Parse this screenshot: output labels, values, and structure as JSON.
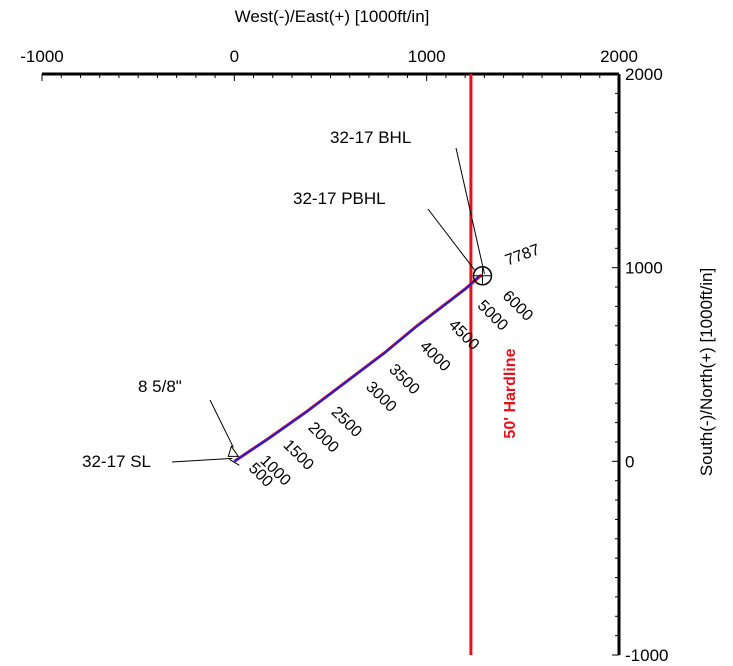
{
  "chart_data": {
    "type": "line",
    "title": "",
    "xlabel": "West(-)/East(+) [1000ft/in]",
    "ylabel": "South(-)/North(+) [1000ft/in]",
    "xlim": [
      -1000,
      2000
    ],
    "ylim": [
      -1000,
      2000
    ],
    "x_ticks": [
      -1000,
      0,
      1000,
      2000
    ],
    "y_ticks": [
      2000,
      1000,
      0,
      -1000
    ],
    "grid": false,
    "colors": {
      "axis": "#000000",
      "hardline": "#e8101a",
      "survey": "#1c1ce0",
      "plan": "#e8101a"
    },
    "series": [
      {
        "x": [
          0,
          180,
          380,
          580,
          780,
          950,
          1200,
          1280,
          1290
        ],
        "y": [
          0,
          120,
          260,
          410,
          560,
          700,
          890,
          958,
          958
        ]
      },
      {
        "x": [
          0,
          180,
          380,
          580,
          780,
          950,
          1200,
          1270
        ],
        "y": [
          0,
          118,
          258,
          408,
          558,
          698,
          888,
          955
        ]
      }
    ],
    "hardline": {
      "label": "50' Hardline",
      "x": 1230
    },
    "depth_labels": [
      {
        "text": "500",
        "x": 70,
        "y": -40
      },
      {
        "text": "1000",
        "x": 130,
        "y": 0
      },
      {
        "text": "1500",
        "x": 250,
        "y": 80
      },
      {
        "text": "2000",
        "x": 380,
        "y": 170
      },
      {
        "text": "2500",
        "x": 500,
        "y": 250
      },
      {
        "text": "3000",
        "x": 680,
        "y": 380
      },
      {
        "text": "3500",
        "x": 800,
        "y": 470
      },
      {
        "text": "4000",
        "x": 960,
        "y": 590
      },
      {
        "text": "4500",
        "x": 1110,
        "y": 700
      },
      {
        "text": "5000",
        "x": 1260,
        "y": 800
      },
      {
        "text": "6000",
        "x": 1390,
        "y": 850
      },
      {
        "text": "7787",
        "x": 1420,
        "y": 1010
      }
    ],
    "annotations": [
      {
        "text": "32-17 BHL"
      },
      {
        "text": "32-17 PBHL"
      },
      {
        "text": "8 5/8\""
      },
      {
        "text": "32-17 SL"
      }
    ],
    "x_tick_labels": [
      "-1000",
      "0",
      "1000",
      "2000"
    ],
    "y_tick_labels": [
      "2000",
      "1000",
      "0",
      "-1000"
    ]
  }
}
